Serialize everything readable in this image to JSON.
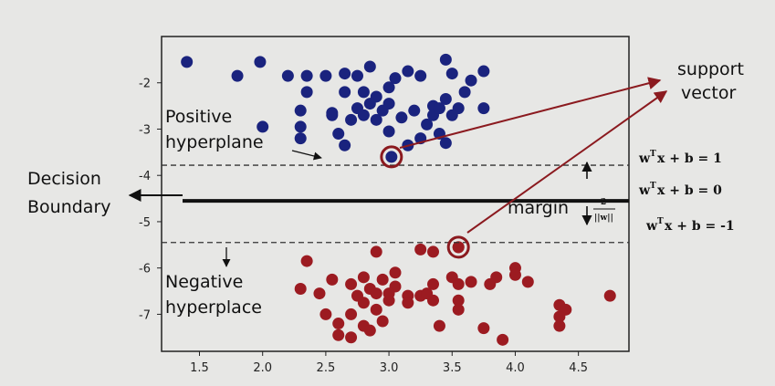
{
  "chart_data": {
    "type": "scatter",
    "xlim": [
      1.2,
      4.9
    ],
    "ylim": [
      -7.8,
      -1.0
    ],
    "x_ticks": [
      "1.5",
      "2.0",
      "2.5",
      "3.0",
      "3.5",
      "4.0",
      "4.5"
    ],
    "y_ticks": [
      "-2",
      "-3",
      "-4",
      "-5",
      "-6",
      "-7"
    ],
    "grid": false,
    "series": [
      {
        "color": "#1a237e",
        "points": [
          [
            1.4,
            -1.55
          ],
          [
            1.8,
            -1.85
          ],
          [
            1.98,
            -1.55
          ],
          [
            2.2,
            -1.85
          ],
          [
            2.35,
            -1.85
          ],
          [
            2.35,
            -2.2
          ],
          [
            2.5,
            -1.85
          ],
          [
            2.65,
            -1.8
          ],
          [
            2.75,
            -1.85
          ],
          [
            2.85,
            -1.65
          ],
          [
            2.0,
            -2.95
          ],
          [
            2.3,
            -2.95
          ],
          [
            2.55,
            -2.7
          ],
          [
            2.8,
            -2.2
          ],
          [
            2.9,
            -2.3
          ],
          [
            3.0,
            -2.1
          ],
          [
            3.05,
            -1.9
          ],
          [
            3.15,
            -1.75
          ],
          [
            3.25,
            -1.85
          ],
          [
            3.45,
            -1.5
          ],
          [
            3.5,
            -1.8
          ],
          [
            3.65,
            -1.95
          ],
          [
            3.75,
            -1.75
          ],
          [
            3.6,
            -2.2
          ],
          [
            3.45,
            -2.35
          ],
          [
            3.35,
            -2.5
          ],
          [
            3.55,
            -2.55
          ],
          [
            3.2,
            -2.6
          ],
          [
            3.1,
            -2.75
          ],
          [
            3.3,
            -2.9
          ],
          [
            3.4,
            -3.1
          ],
          [
            3.25,
            -3.2
          ],
          [
            3.15,
            -3.35
          ],
          [
            3.45,
            -3.3
          ],
          [
            2.65,
            -2.2
          ],
          [
            2.75,
            -2.55
          ],
          [
            2.8,
            -2.7
          ],
          [
            2.85,
            -2.45
          ],
          [
            2.95,
            -2.6
          ],
          [
            3.0,
            -2.45
          ],
          [
            2.9,
            -2.8
          ],
          [
            2.6,
            -3.1
          ],
          [
            2.7,
            -2.8
          ],
          [
            2.55,
            -2.65
          ],
          [
            2.3,
            -2.6
          ],
          [
            2.65,
            -3.35
          ],
          [
            2.3,
            -3.2
          ],
          [
            3.35,
            -2.7
          ],
          [
            3.5,
            -2.7
          ],
          [
            3.4,
            -2.55
          ],
          [
            3.75,
            -2.55
          ],
          [
            3.0,
            -3.05
          ],
          [
            3.02,
            -3.6
          ]
        ]
      },
      {
        "color": "#9c1b21",
        "points": [
          [
            2.35,
            -5.85
          ],
          [
            2.9,
            -5.65
          ],
          [
            3.25,
            -5.6
          ],
          [
            3.35,
            -5.65
          ],
          [
            3.55,
            -5.55
          ],
          [
            2.3,
            -6.45
          ],
          [
            2.45,
            -6.55
          ],
          [
            2.55,
            -6.25
          ],
          [
            2.7,
            -6.35
          ],
          [
            2.75,
            -6.6
          ],
          [
            2.8,
            -6.2
          ],
          [
            2.85,
            -6.45
          ],
          [
            2.95,
            -6.25
          ],
          [
            3.05,
            -6.1
          ],
          [
            3.05,
            -6.4
          ],
          [
            3.15,
            -6.6
          ],
          [
            3.25,
            -6.6
          ],
          [
            3.35,
            -6.35
          ],
          [
            3.5,
            -6.2
          ],
          [
            3.55,
            -6.35
          ],
          [
            3.65,
            -6.3
          ],
          [
            3.85,
            -6.2
          ],
          [
            3.8,
            -6.35
          ],
          [
            4.0,
            -6.0
          ],
          [
            4.0,
            -6.15
          ],
          [
            4.1,
            -6.3
          ],
          [
            3.0,
            -6.7
          ],
          [
            2.9,
            -6.9
          ],
          [
            2.8,
            -6.75
          ],
          [
            2.7,
            -7.0
          ],
          [
            2.6,
            -7.2
          ],
          [
            2.8,
            -7.25
          ],
          [
            2.85,
            -7.35
          ],
          [
            2.95,
            -7.15
          ],
          [
            3.15,
            -6.75
          ],
          [
            3.35,
            -6.7
          ],
          [
            3.55,
            -6.7
          ],
          [
            3.55,
            -6.9
          ],
          [
            3.75,
            -7.3
          ],
          [
            3.9,
            -7.55
          ],
          [
            3.4,
            -7.25
          ],
          [
            4.35,
            -6.8
          ],
          [
            4.4,
            -6.9
          ],
          [
            4.35,
            -7.05
          ],
          [
            4.35,
            -7.25
          ],
          [
            4.75,
            -6.6
          ],
          [
            2.5,
            -7.0
          ],
          [
            2.6,
            -7.45
          ],
          [
            2.7,
            -7.5
          ],
          [
            2.9,
            -6.55
          ],
          [
            3.0,
            -6.55
          ],
          [
            3.3,
            -6.55
          ],
          [
            3.55,
            -5.55
          ]
        ]
      }
    ],
    "support_vectors": [
      [
        3.02,
        -3.6
      ],
      [
        3.55,
        -5.55
      ]
    ],
    "lines": {
      "decision_boundary": -4.55,
      "upper_margin": -3.78,
      "lower_margin": -5.45
    },
    "labels": {
      "support_vector_line1": "support",
      "support_vector_line2": "vector",
      "positive_line1": "Positive",
      "positive_line2": "hyperplane",
      "decision_line1": "Decision",
      "decision_line2": "Boundary",
      "negative_line1": "Negative",
      "negative_line2": "hyperplace",
      "margin": "margin",
      "margin_frac_num": "2",
      "margin_frac_den": "||w||",
      "eq_upper_lhs": "w",
      "eq_upper_sup": "T",
      "eq_upper_rhs": "x + b = 1",
      "eq_mid_lhs": "w",
      "eq_mid_sup": "T",
      "eq_mid_rhs": "x + b = 0",
      "eq_low_lhs": "w",
      "eq_low_sup": "T",
      "eq_low_rhs": "x + b = -1"
    },
    "colors": {
      "positive": "#1a237e",
      "negative": "#9c1b21",
      "support_ring": "#8b1a1f",
      "arrow": "#8b1a1f"
    }
  }
}
